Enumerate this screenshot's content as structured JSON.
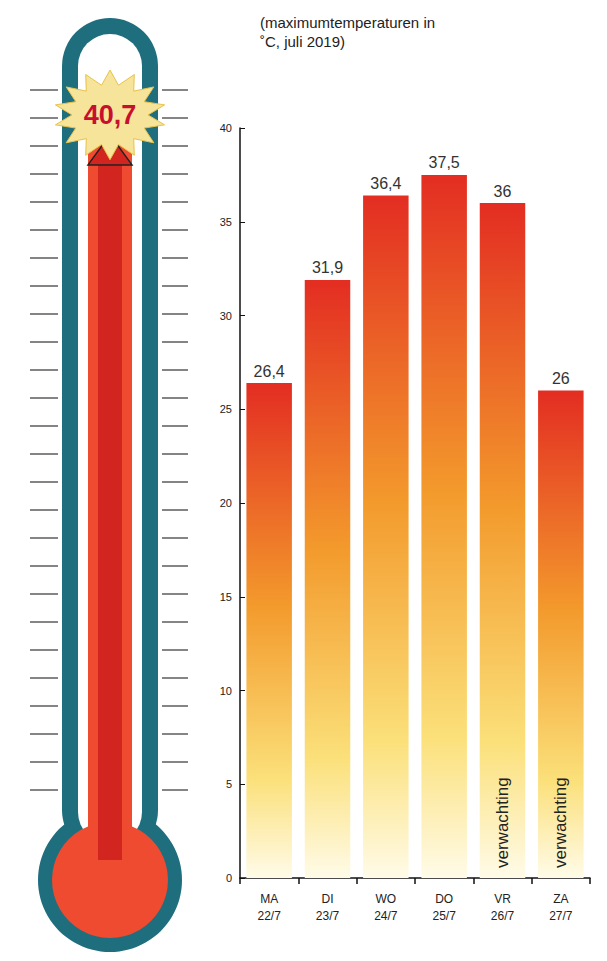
{
  "chart_data": {
    "type": "bar",
    "subtitle": "(maximumtemperaturen in ˚C, juli 2019)",
    "categories": [
      "MA\n22/7",
      "DI\n23/7",
      "WO\n24/7",
      "DO\n25/7",
      "VR\n26/7",
      "ZA\n27/7"
    ],
    "values": [
      26.4,
      31.9,
      36.4,
      37.5,
      36,
      26
    ],
    "value_labels": [
      "26,4",
      "31,9",
      "36,4",
      "37,5",
      "36",
      "26"
    ],
    "data_labels": true,
    "color": "#e32d22",
    "ylim": [
      0,
      40
    ],
    "yticks": [
      0,
      5,
      10,
      15,
      20,
      25,
      30,
      35,
      40
    ],
    "grid": false,
    "annotations": [
      {
        "text": "verwachting",
        "category": "VR\n26/7"
      },
      {
        "text": "verwachting",
        "category": "ZA\n27/7"
      },
      {
        "text": "40,7",
        "value": 40.7
      }
    ]
  }
}
